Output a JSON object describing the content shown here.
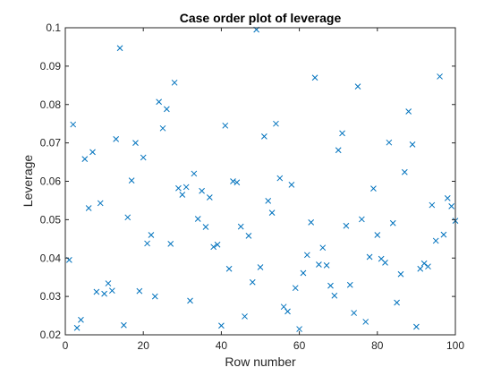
{
  "chart_data": {
    "type": "scatter",
    "title": "Case order plot of leverage",
    "xlabel": "Row number",
    "ylabel": "Leverage",
    "xlim": [
      0,
      100
    ],
    "ylim": [
      0.02,
      0.1
    ],
    "xticks": [
      "0",
      "20",
      "40",
      "60",
      "80",
      "100"
    ],
    "yticks": [
      "0.02",
      "0.03",
      "0.04",
      "0.05",
      "0.06",
      "0.07",
      "0.08",
      "0.09",
      "0.1"
    ],
    "reference_line": {
      "y": 0.1,
      "style": "dotted",
      "color": "#000000"
    },
    "marker": "x",
    "marker_color": "#0072BD",
    "grid": false,
    "series": [
      {
        "x": [
          1,
          2,
          3,
          4,
          5,
          6,
          7,
          8,
          9,
          10,
          11,
          12,
          13,
          14,
          15,
          16,
          17,
          18,
          19,
          20,
          21,
          22,
          23,
          24,
          25,
          26,
          27,
          28,
          29,
          30,
          31,
          32,
          33,
          34,
          35,
          36,
          37,
          38,
          39,
          40,
          41,
          42,
          43,
          44,
          45,
          46,
          47,
          48,
          49,
          50,
          51,
          52,
          53,
          54,
          55,
          56,
          57,
          58,
          59,
          60,
          61,
          62,
          63,
          64,
          65,
          66,
          67,
          68,
          69,
          70,
          71,
          72,
          73,
          74,
          75,
          76,
          77,
          78,
          79,
          80,
          81,
          82,
          83,
          84,
          85,
          86,
          87,
          88,
          89,
          90,
          91,
          92,
          93,
          94,
          95,
          96,
          97,
          98,
          99,
          100
        ],
        "y": [
          0.0395,
          0.0748,
          0.0218,
          0.0239,
          0.0658,
          0.053,
          0.0676,
          0.0312,
          0.0543,
          0.0307,
          0.0334,
          0.0315,
          0.071,
          0.0947,
          0.0225,
          0.0506,
          0.0602,
          0.07,
          0.0314,
          0.0662,
          0.0438,
          0.046,
          0.03,
          0.0807,
          0.0738,
          0.0788,
          0.0437,
          0.0857,
          0.0582,
          0.0565,
          0.0585,
          0.0289,
          0.062,
          0.0502,
          0.0575,
          0.0481,
          0.0558,
          0.0429,
          0.0435,
          0.0224,
          0.0745,
          0.0372,
          0.06,
          0.0597,
          0.0482,
          0.0248,
          0.0458,
          0.0337,
          0.0995,
          0.0376,
          0.0717,
          0.0549,
          0.0518,
          0.075,
          0.0608,
          0.0273,
          0.0261,
          0.0591,
          0.0322,
          0.0215,
          0.0361,
          0.0408,
          0.0493,
          0.087,
          0.0383,
          0.0427,
          0.0381,
          0.0328,
          0.0302,
          0.0681,
          0.0725,
          0.0484,
          0.033,
          0.0257,
          0.0847,
          0.0501,
          0.0234,
          0.0403,
          0.0581,
          0.046,
          0.0398,
          0.0388,
          0.0701,
          0.0491,
          0.0284,
          0.0358,
          0.0624,
          0.0782,
          0.0696,
          0.0221,
          0.0372,
          0.0386,
          0.0378,
          0.0538,
          0.0445,
          0.0873,
          0.0461,
          0.0556,
          0.0535,
          0.0497
        ]
      }
    ]
  }
}
